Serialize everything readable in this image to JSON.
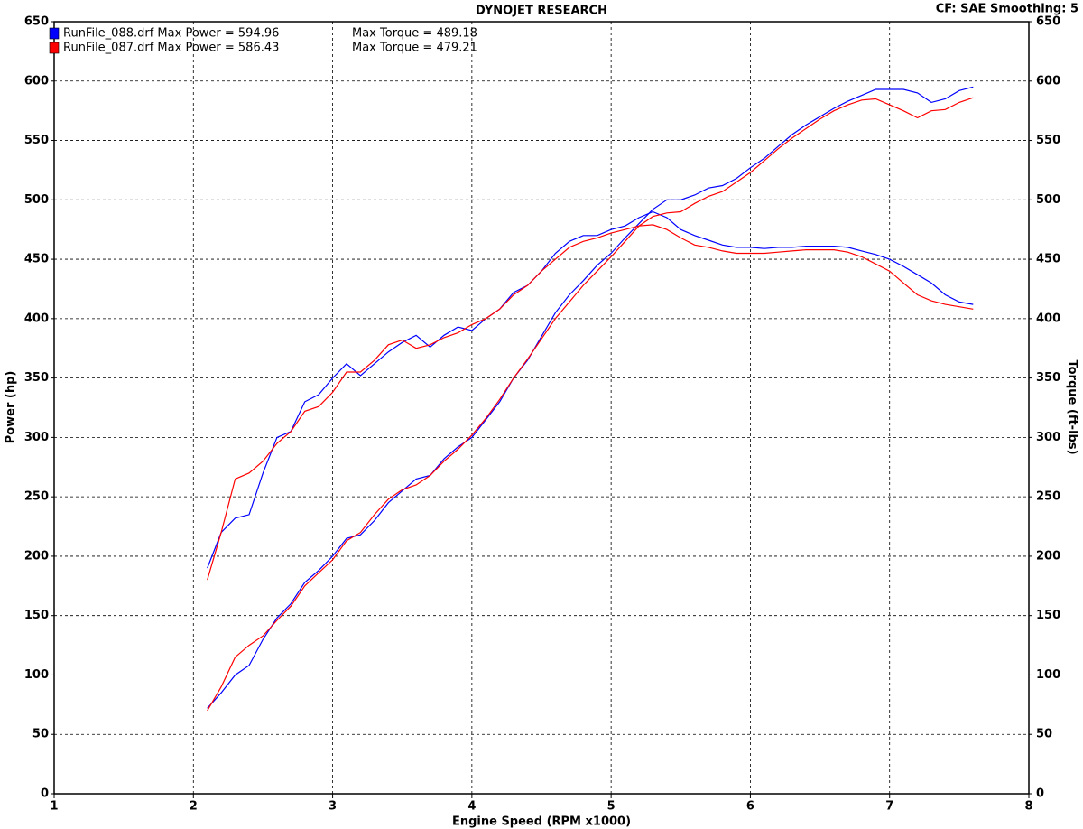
{
  "chart_data": {
    "type": "line",
    "title": "DYNOJET RESEARCH",
    "corner_note": "CF: SAE  Smoothing: 5",
    "x_label": "Engine Speed (RPM x1000)",
    "y_label": "Power (hp)",
    "y2_label": "Torque (ft-lbs)",
    "x": [
      2.1,
      2.2,
      2.3,
      2.4,
      2.5,
      2.6,
      2.7,
      2.8,
      2.9,
      3.0,
      3.1,
      3.2,
      3.3,
      3.4,
      3.5,
      3.6,
      3.7,
      3.8,
      3.9,
      4.0,
      4.1,
      4.2,
      4.3,
      4.4,
      4.5,
      4.6,
      4.7,
      4.8,
      4.9,
      5.0,
      5.1,
      5.2,
      5.3,
      5.4,
      5.5,
      5.6,
      5.7,
      5.8,
      5.9,
      6.0,
      6.1,
      6.2,
      6.3,
      6.4,
      6.5,
      6.6,
      6.7,
      6.8,
      6.9,
      7.0,
      7.1,
      7.2,
      7.3,
      7.4,
      7.5,
      7.6
    ],
    "xlim": [
      1,
      8
    ],
    "xticks": [
      1,
      2,
      3,
      4,
      5,
      6,
      7,
      8
    ],
    "ylim": [
      0,
      650
    ],
    "yticks": [
      0,
      50,
      100,
      150,
      200,
      250,
      300,
      350,
      400,
      450,
      500,
      550,
      600,
      650
    ],
    "y2lim": [
      0,
      650
    ],
    "y2ticks": [
      0,
      50,
      100,
      150,
      200,
      250,
      300,
      350,
      400,
      450,
      500,
      550,
      600,
      650
    ],
    "grid": true,
    "series": [
      {
        "name": "RunFile_088.drf Max Power = 594.96",
        "color": "#0000ff",
        "values": [
          72,
          85,
          100,
          108,
          130,
          148,
          160,
          178,
          188,
          200,
          215,
          218,
          230,
          245,
          255,
          265,
          268,
          282,
          292,
          300,
          315,
          330,
          350,
          365,
          385,
          405,
          420,
          432,
          445,
          455,
          468,
          480,
          492,
          500,
          500,
          504,
          510,
          512,
          518,
          527,
          535,
          545,
          555,
          563,
          570,
          577,
          583,
          588,
          593,
          593,
          593,
          590,
          582,
          585,
          592,
          595
        ]
      },
      {
        "name": "Max Torque = 489.18",
        "color": "#0000ff",
        "axis": "y2",
        "values": [
          190,
          220,
          232,
          235,
          270,
          300,
          305,
          330,
          336,
          350,
          362,
          352,
          362,
          372,
          380,
          386,
          376,
          386,
          393,
          390,
          400,
          408,
          422,
          428,
          440,
          455,
          465,
          470,
          470,
          475,
          478,
          485,
          490,
          485,
          475,
          470,
          466,
          462,
          460,
          460,
          459,
          460,
          460,
          461,
          461,
          461,
          460,
          457,
          454,
          450,
          444,
          437,
          430,
          420,
          414,
          412
        ]
      },
      {
        "name": "RunFile_087.drf Max Power = 586.43",
        "color": "#ff0000",
        "values": [
          70,
          90,
          115,
          125,
          133,
          146,
          158,
          175,
          186,
          197,
          213,
          220,
          235,
          248,
          256,
          260,
          268,
          280,
          290,
          302,
          316,
          332,
          350,
          366,
          383,
          400,
          414,
          428,
          440,
          452,
          465,
          478,
          486,
          489,
          490,
          497,
          503,
          507,
          515,
          523,
          533,
          543,
          552,
          560,
          568,
          575,
          580,
          584,
          585,
          580,
          575,
          569,
          575,
          576,
          582,
          586
        ]
      },
      {
        "name": "Max Torque = 479.21",
        "color": "#ff0000",
        "axis": "y2",
        "values": [
          180,
          220,
          265,
          270,
          280,
          295,
          305,
          322,
          326,
          338,
          355,
          355,
          365,
          378,
          382,
          375,
          378,
          384,
          388,
          395,
          400,
          408,
          420,
          428,
          440,
          450,
          460,
          465,
          468,
          472,
          475,
          478,
          479,
          475,
          468,
          462,
          460,
          457,
          455,
          455,
          455,
          456,
          457,
          458,
          458,
          458,
          456,
          452,
          446,
          440,
          430,
          420,
          415,
          412,
          410,
          408
        ]
      }
    ]
  }
}
